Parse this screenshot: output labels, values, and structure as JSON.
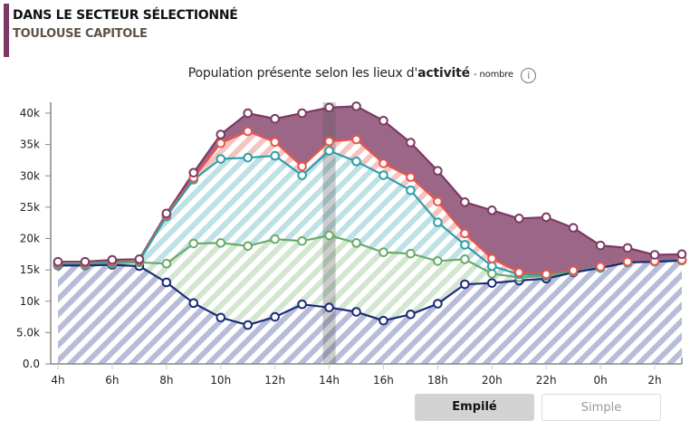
{
  "header": {
    "title": "DANS LE SECTEUR SÉLECTIONNÉ",
    "subtitle": "TOULOUSE CAPITOLE"
  },
  "chart_title": {
    "main": "Population présente selon les lieux d'",
    "bold": "activité",
    "unit": "- nombre",
    "info_icon": "info-icon"
  },
  "buttons": {
    "stacked": "Empilé",
    "simple": "Simple"
  },
  "chart_data": {
    "type": "area",
    "stacked": true,
    "x": [
      "4h",
      "5h",
      "6h",
      "7h",
      "8h",
      "9h",
      "10h",
      "11h",
      "12h",
      "13h",
      "14h",
      "15h",
      "16h",
      "17h",
      "18h",
      "19h",
      "20h",
      "21h",
      "22h",
      "23h",
      "0h",
      "1h",
      "2h",
      "3h"
    ],
    "x_tick_labels": [
      "4h",
      "6h",
      "8h",
      "10h",
      "12h",
      "14h",
      "16h",
      "18h",
      "20h",
      "22h",
      "0h",
      "2h"
    ],
    "y_tick_labels": [
      "0.0",
      "5.0k",
      "10k",
      "15k",
      "20k",
      "25k",
      "30k",
      "35k",
      "40k"
    ],
    "ylim": [
      0,
      40000
    ],
    "highlight": "14h",
    "series_cumulative": [
      {
        "color": "#7b3a63",
        "fill": "solid",
        "values": [
          16300,
          16300,
          16600,
          16700,
          24000,
          30500,
          36600,
          40000,
          39100,
          40000,
          40900,
          41100,
          38800,
          35300,
          30800,
          25800,
          24500,
          23200,
          23400,
          21700,
          18900,
          18500,
          17400,
          17500
        ]
      },
      {
        "color": "#e8554e",
        "fill": "hatch",
        "values": [
          16100,
          16100,
          16300,
          16500,
          23800,
          29700,
          35200,
          37100,
          35400,
          31500,
          35500,
          35800,
          32000,
          29800,
          25900,
          20800,
          16800,
          14600,
          14300,
          14900,
          15500,
          16300,
          16400,
          16600
        ]
      },
      {
        "color": "#2e9ea8",
        "fill": "hatch",
        "values": [
          16000,
          16000,
          16200,
          16400,
          23500,
          29400,
          32700,
          32900,
          33200,
          30100,
          34000,
          32300,
          30100,
          27700,
          22600,
          19000,
          15600,
          14300,
          14100,
          14800,
          15400,
          16200,
          16400,
          16600
        ]
      },
      {
        "color": "#6aab6a",
        "fill": "hatch",
        "values": [
          15800,
          15800,
          16000,
          16200,
          16000,
          19200,
          19300,
          18800,
          19900,
          19600,
          20500,
          19300,
          17800,
          17600,
          16400,
          16700,
          14400,
          13800,
          14000,
          14700,
          15300,
          16200,
          16300,
          16500
        ]
      },
      {
        "color": "#1b2a7a",
        "fill": "hatch",
        "values": [
          15700,
          15700,
          15800,
          15600,
          13000,
          9700,
          7400,
          6200,
          7500,
          9500,
          9000,
          8300,
          6900,
          7900,
          9600,
          12700,
          12900,
          13300,
          13600,
          14600,
          15300,
          16200,
          16300,
          16500
        ]
      }
    ]
  }
}
